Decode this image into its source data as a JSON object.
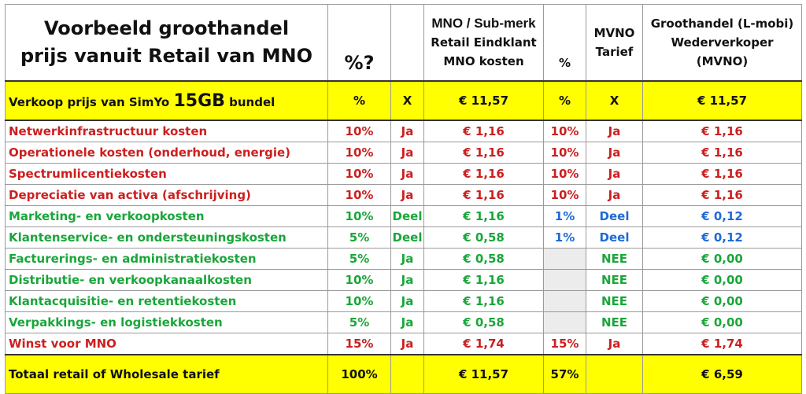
{
  "header": {
    "title_line1": "Voorbeeld groothandel",
    "title_line2": "prijs vanuit Retail van MNO",
    "pct_q": "%?",
    "mno_line1": "MNO / Sub-merk",
    "mno_line2": "Retail Eindklant",
    "mno_line3": "MNO kosten",
    "pct": "%",
    "mvno_line1": "MVNO",
    "mvno_line2": "Tarief",
    "wholesale_line1": "Groothandel (L-mobi)",
    "wholesale_line2": "Wederverkoper",
    "wholesale_line3": "(MVNO)"
  },
  "sell_row": {
    "label_pre": "Verkoop prijs van SimYo ",
    "label_big": "15GB",
    "label_post": " bundel",
    "pct": "%",
    "x1": "X",
    "mno_price": "€ 11,57",
    "pct2": "%",
    "x2": "X",
    "wholesale_price": "€ 11,57"
  },
  "rows": [
    {
      "label": "Netwerkinfrastructuur kosten",
      "pct": "10%",
      "incl": "Ja",
      "mno": "€ 1,16",
      "pct2": "10%",
      "mvno": "Ja",
      "wholesale": "€ 1,16"
    },
    {
      "label": "Operationele kosten (onderhoud, energie)",
      "pct": "10%",
      "incl": "Ja",
      "mno": "€ 1,16",
      "pct2": "10%",
      "mvno": "Ja",
      "wholesale": "€ 1,16"
    },
    {
      "label": "Spectrumlicentiekosten",
      "pct": "10%",
      "incl": "Ja",
      "mno": "€ 1,16",
      "pct2": "10%",
      "mvno": "Ja",
      "wholesale": "€ 1,16"
    },
    {
      "label": "Depreciatie van activa (afschrijving)",
      "pct": "10%",
      "incl": "Ja",
      "mno": "€ 1,16",
      "pct2": "10%",
      "mvno": "Ja",
      "wholesale": "€ 1,16"
    },
    {
      "label": "Marketing- en verkoopkosten",
      "pct": "10%",
      "incl": "Deel",
      "mno": "€ 1,16",
      "pct2": "1%",
      "mvno": "Deel",
      "wholesale": "€ 0,12"
    },
    {
      "label": "Klantenservice- en ondersteuningskosten",
      "pct": "5%",
      "incl": "Deel",
      "mno": "€ 0,58",
      "pct2": "1%",
      "mvno": "Deel",
      "wholesale": "€ 0,12"
    },
    {
      "label": "Facturerings- en administratiekosten",
      "pct": "5%",
      "incl": "Ja",
      "mno": "€ 0,58",
      "pct2": "",
      "mvno": "NEE",
      "wholesale": "€ 0,00"
    },
    {
      "label": "Distributie- en verkoopkanaalkosten",
      "pct": "10%",
      "incl": "Ja",
      "mno": "€ 1,16",
      "pct2": "",
      "mvno": "NEE",
      "wholesale": "€ 0,00"
    },
    {
      "label": "Klantacquisitie- en retentiekosten",
      "pct": "10%",
      "incl": "Ja",
      "mno": "€ 1,16",
      "pct2": "",
      "mvno": "NEE",
      "wholesale": "€ 0,00"
    },
    {
      "label": "Verpakkings- en logistiekkosten",
      "pct": "5%",
      "incl": "Ja",
      "mno": "€ 0,58",
      "pct2": "",
      "mvno": "NEE",
      "wholesale": "€ 0,00"
    },
    {
      "label": "Winst voor MNO",
      "pct": "15%",
      "incl": "Ja",
      "mno": "€ 1,74",
      "pct2": "15%",
      "mvno": "Ja",
      "wholesale": "€ 1,74"
    }
  ],
  "total_row": {
    "label": "Totaal retail of Wholesale tarief",
    "pct": "100%",
    "mno_total": "€ 11,57",
    "pct2": "57%",
    "wholesale_total": "€ 6,59"
  },
  "colors": {
    "red": "#cc1f1f",
    "green": "#1aa63a",
    "blue": "#1f6ad6",
    "highlight_yellow": "#ffff00",
    "shaded_cell": "#ececec"
  }
}
